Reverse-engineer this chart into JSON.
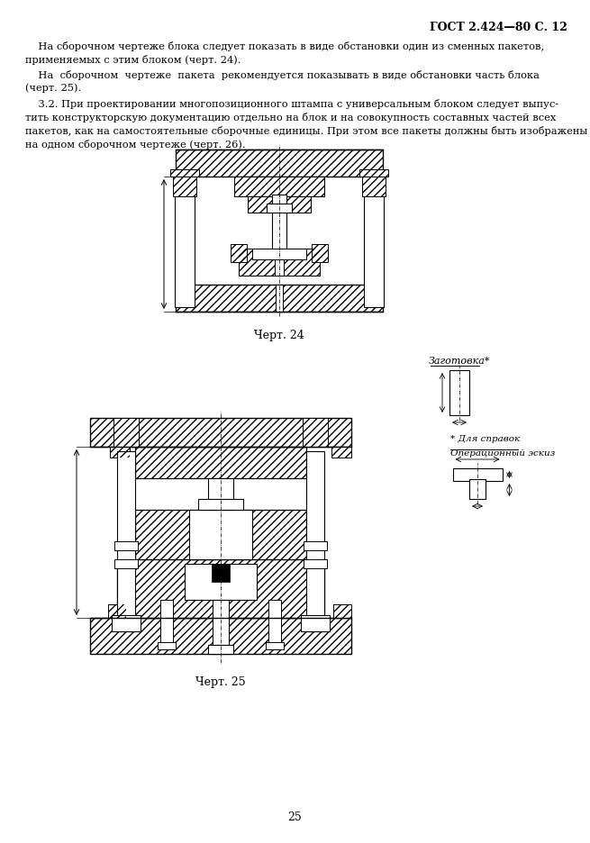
{
  "page_header": "ГОСТ 2.424—80 С. 12",
  "paragraph1": "    На сборочном чертеже блока следует показать в виде обстановки один из сменных пакетов,\nприменяемых с этим блоком (черт. 24).",
  "paragraph2": "    На  сборочном  чертеже  пакета  рекомендуется показывать в виде обстановки часть блока\n(черт. 25).",
  "paragraph3": "    3.2. При проектировании многопозиционного штампа с универсальным блоком следует выпус-\nтить конструкторскую документацию отдельно на блок и на совокупность составных частей всех\nпакетов, как на самостоятельные сборочные единицы. При этом все пакеты должны быть изображены\nна одном сборочном чертеже (черт. 26).",
  "caption1": "Черт. 24",
  "caption2": "Черт. 25",
  "page_number": "25",
  "annotation1": "Заготовка*",
  "annotation2": "* Для справок",
  "annotation3": "Операционный эскиз",
  "bg_color": "#ffffff",
  "text_color": "#000000",
  "line_color": "#000000"
}
